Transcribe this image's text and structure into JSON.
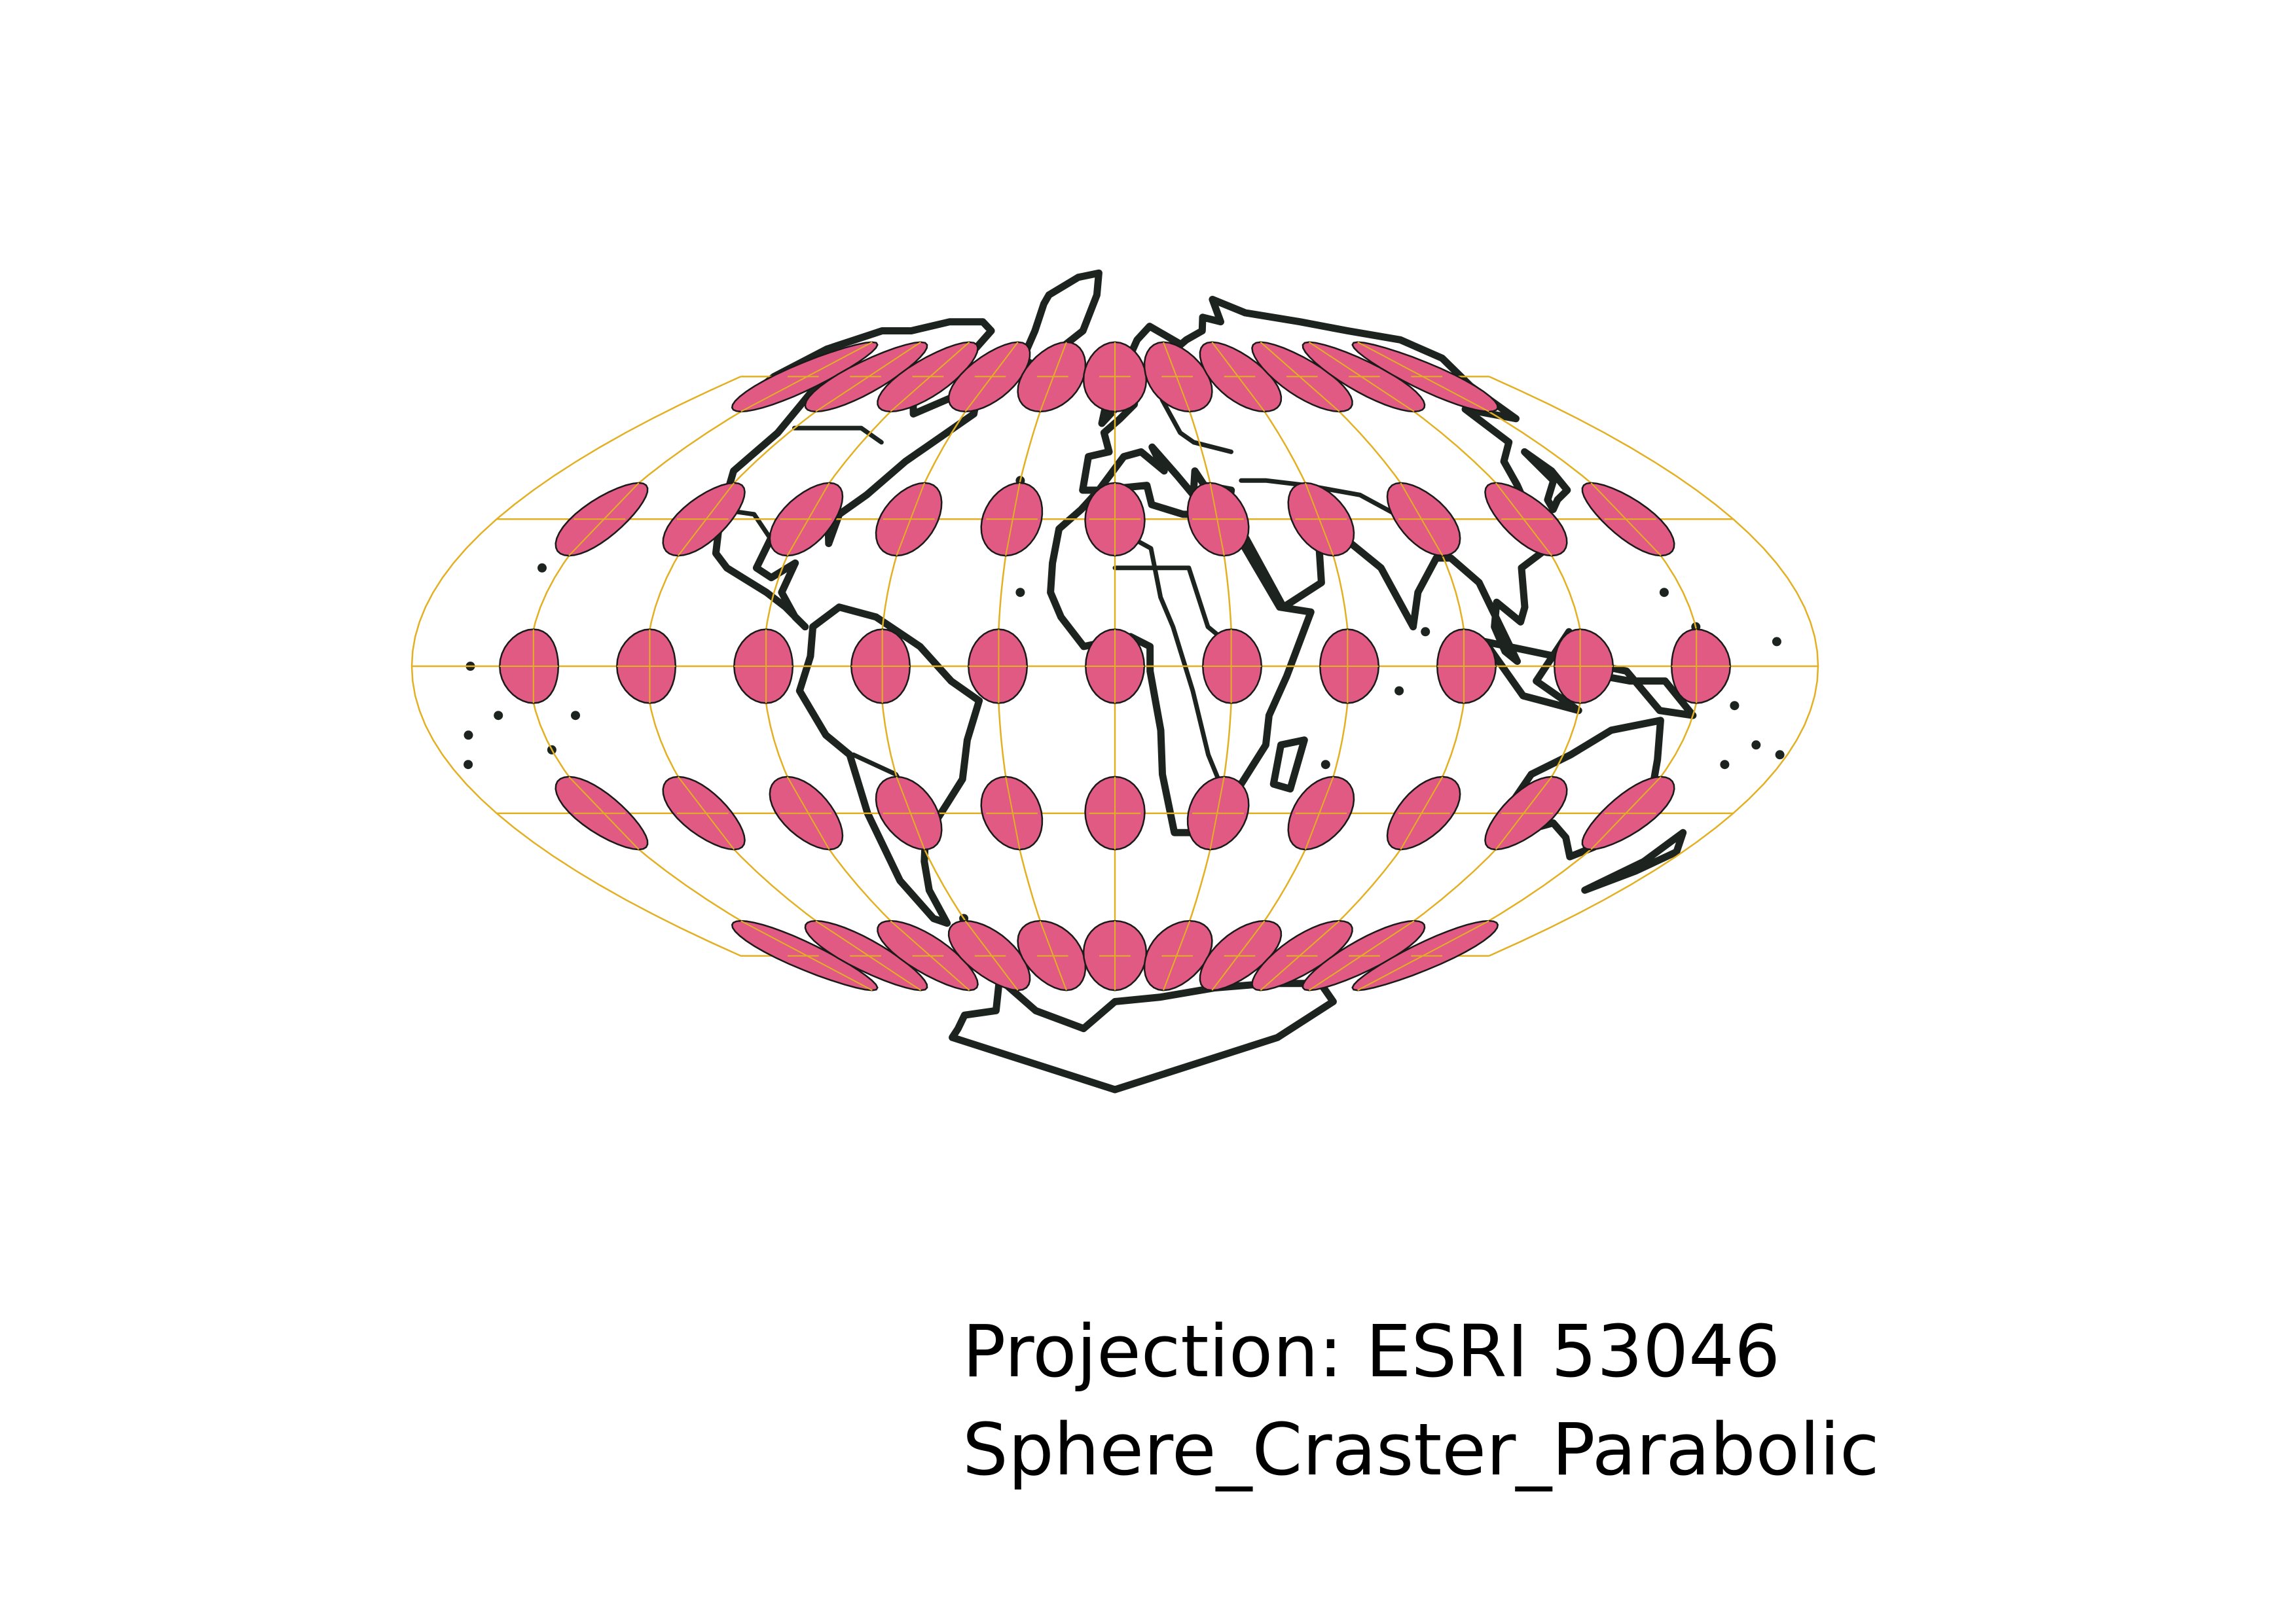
{
  "figure": {
    "projection_label": "Projection: ESRI 53046",
    "projection_name": "Sphere_Craster_Parabolic"
  },
  "map": {
    "projection": "Craster Parabolic",
    "graticule_latitudes": [
      -60,
      -30,
      0,
      30,
      60
    ],
    "graticule_longitudes": [
      -150,
      -120,
      -90,
      -60,
      -30,
      0,
      30,
      60,
      90,
      120,
      150
    ],
    "outline_longitudes": [
      -180,
      180
    ],
    "colors": {
      "background": "#ffffff",
      "coastline": "#1d241f",
      "graticule": "#e3b023",
      "indicatrix_fill": "#e05a84",
      "indicatrix_stroke": "#1a1a1a"
    },
    "layers": [
      "coastlines-and-borders",
      "graticule",
      "tissot-indicatrices"
    ]
  }
}
